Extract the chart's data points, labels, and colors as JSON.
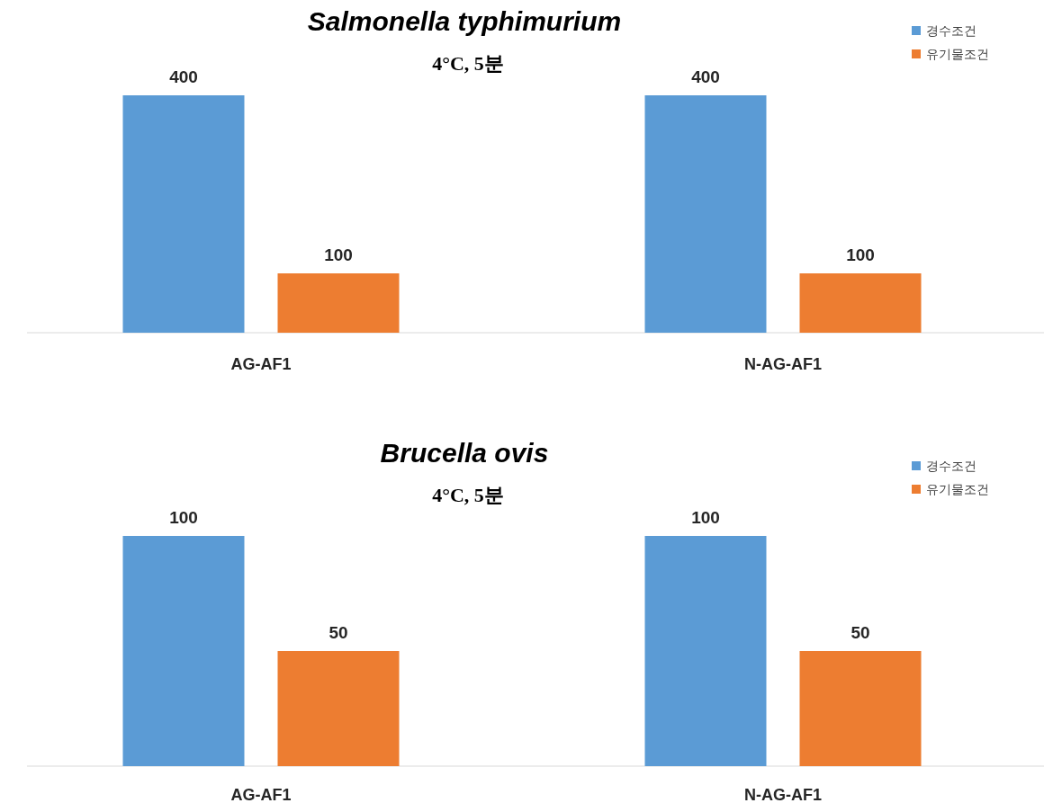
{
  "chart_data": [
    {
      "type": "bar",
      "title": "Salmonella typhimurium",
      "subtitle": "4°C, 5분",
      "categories": [
        "AG-AF1",
        "N-AG-AF1"
      ],
      "series": [
        {
          "name": "경수조건",
          "color": "#5b9bd5",
          "values": [
            400,
            400
          ]
        },
        {
          "name": "유기물조건",
          "color": "#ed7d31",
          "values": [
            100,
            100
          ]
        }
      ],
      "data_labels": true,
      "legend": "top right"
    },
    {
      "type": "bar",
      "title": "Brucella ovis",
      "subtitle": "4°C, 5분",
      "categories": [
        "AG-AF1",
        "N-AG-AF1"
      ],
      "series": [
        {
          "name": "경수조건",
          "color": "#5b9bd5",
          "values": [
            100,
            100
          ]
        },
        {
          "name": "유기물조건",
          "color": "#ed7d31",
          "values": [
            50,
            50
          ]
        }
      ],
      "data_labels": true,
      "legend": "top right"
    }
  ]
}
